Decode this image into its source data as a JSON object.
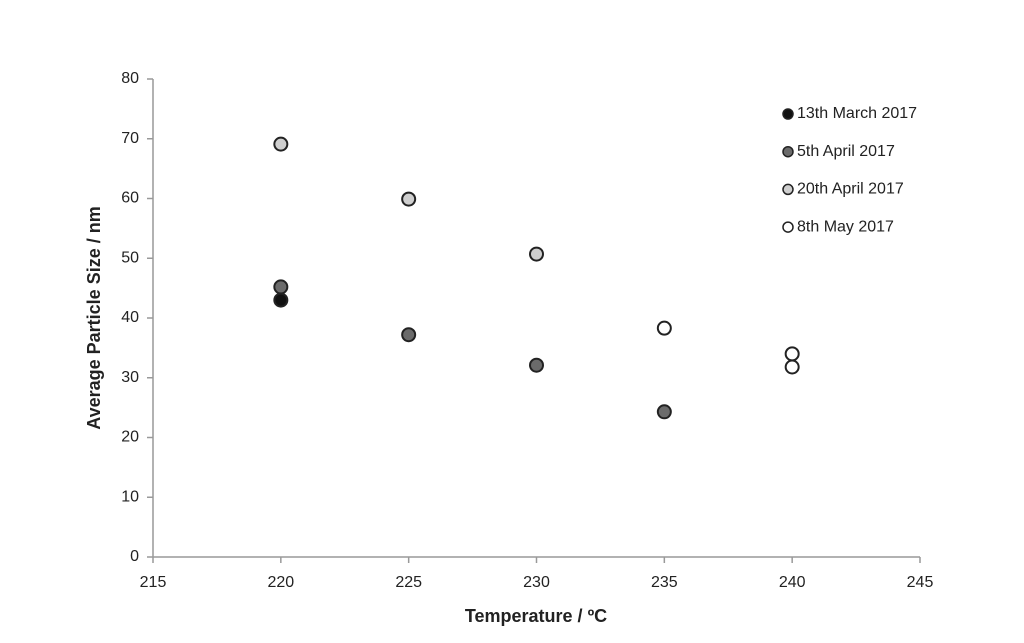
{
  "chart_data": {
    "type": "scatter",
    "x_label": "Temperature / ºC",
    "y_label": "Average Particle Size / nm",
    "xlim": [
      215,
      245
    ],
    "xticks": [
      215,
      220,
      225,
      230,
      235,
      240,
      245
    ],
    "ylim": [
      0,
      80
    ],
    "yticks": [
      0,
      10,
      20,
      30,
      40,
      50,
      60,
      70,
      80
    ],
    "grid": false,
    "legend_position": "top-right",
    "series": [
      {
        "name": "13th March 2017",
        "color": "#111111",
        "x": [
          220
        ],
        "values": [
          43.0
        ]
      },
      {
        "name": "5th April 2017",
        "color": "#6b6b6b",
        "x": [
          220,
          225,
          230,
          235
        ],
        "values": [
          45.2,
          37.2,
          32.1,
          24.3
        ]
      },
      {
        "name": "20th April 2017",
        "color": "#cfcfcf",
        "x": [
          220,
          225,
          230
        ],
        "values": [
          69.1,
          59.9,
          50.7
        ]
      },
      {
        "name": "8th May 2017",
        "color": "#ffffff",
        "x": [
          235,
          240,
          240
        ],
        "values": [
          38.3,
          34.0,
          31.8
        ]
      }
    ]
  }
}
